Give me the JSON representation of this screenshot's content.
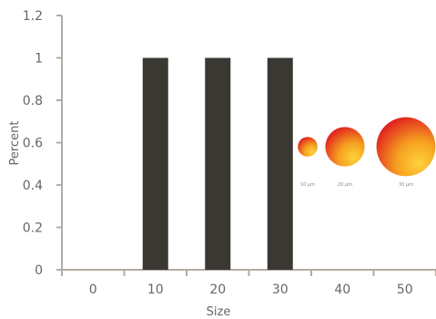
{
  "chart_data": {
    "type": "bar",
    "categories": [
      "0",
      "10",
      "20",
      "30",
      "40",
      "50"
    ],
    "values": [
      0,
      1,
      1,
      1,
      0,
      0
    ],
    "ylim": [
      0,
      1.2
    ],
    "yticks": [
      "0",
      "0.2",
      "0.4",
      "0.6",
      "0.8",
      "1",
      "1.2"
    ],
    "xlabel": "Size",
    "ylabel": "Percent",
    "grid": false,
    "bar_color": "#3a3833",
    "axis_color": "#b3aca4",
    "bubbles": [
      {
        "label": "10 µm",
        "size": 10
      },
      {
        "label": "20 µm",
        "size": 20
      },
      {
        "label": "30 µm",
        "size": 30
      }
    ],
    "bubble_colors": {
      "inner": "#ffd23a",
      "mid": "#f5a020",
      "outer": "#e01e1e"
    }
  }
}
